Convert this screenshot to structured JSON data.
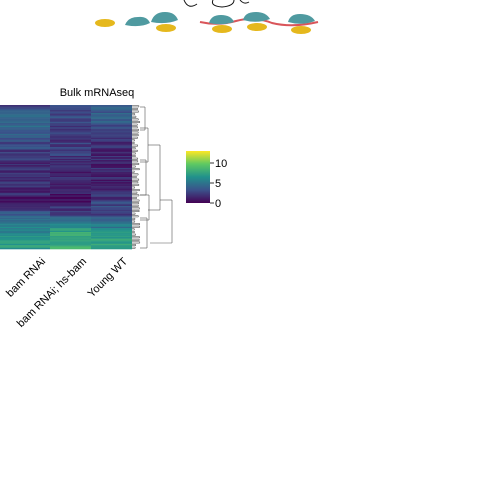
{
  "chart_data": {
    "type": "heatmap",
    "title": "Bulk mRNAseq",
    "columns": [
      "bam RNAi",
      "bam RNAi; hs-bam",
      "Young WT"
    ],
    "colorbar": {
      "ticks": [
        0,
        5,
        10
      ],
      "range": [
        0,
        13
      ],
      "colormap": "viridis"
    },
    "row_profile": [
      {
        "bam RNAi": 3.0,
        "bam RNAi; hs-bam": 2.5,
        "Young WT": 4.0
      },
      {
        "bam RNAi": 4.5,
        "bam RNAi; hs-bam": 3.0,
        "Young WT": 3.5
      },
      {
        "bam RNAi": 3.5,
        "bam RNAi; hs-bam": 2.0,
        "Young WT": 2.0
      },
      {
        "bam RNAi": 2.5,
        "bam RNAi; hs-bam": 2.5,
        "Young WT": 1.5
      },
      {
        "bam RNAi": 1.5,
        "bam RNAi; hs-bam": 1.0,
        "Young WT": 1.5
      },
      {
        "bam RNAi": 2.0,
        "bam RNAi; hs-bam": 1.5,
        "Young WT": 1.0
      },
      {
        "bam RNAi": 1.0,
        "bam RNAi; hs-bam": 0.5,
        "Young WT": 2.5
      },
      {
        "bam RNAi": 4.0,
        "bam RNAi; hs-bam": 3.5,
        "Young WT": 3.0
      },
      {
        "bam RNAi": 6.0,
        "bam RNAi; hs-bam": 7.5,
        "Young WT": 6.5
      },
      {
        "bam RNAi": 7.0,
        "bam RNAi; hs-bam": 8.5,
        "Young WT": 8.0
      }
    ]
  },
  "colors": {
    "mouse_body": "#4f9aa0",
    "mouse_yellow": "#e5b81d",
    "sinus_line": "#d9555a",
    "dendrogram": "#555555"
  },
  "icons": [
    "mouse-icon",
    "yellow-blob-icon",
    "sine-wave-icon"
  ]
}
